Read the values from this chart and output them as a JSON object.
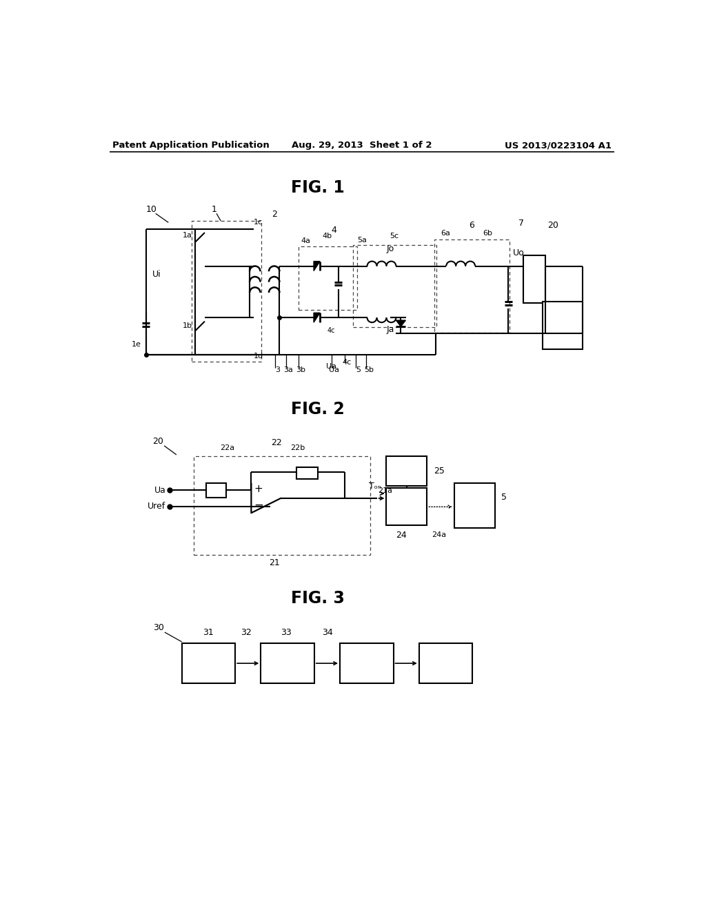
{
  "bg": "#ffffff",
  "header_left": "Patent Application Publication",
  "header_center": "Aug. 29, 2013  Sheet 1 of 2",
  "header_right": "US 2013/0223104 A1",
  "fig1_title": "FIG. 1",
  "fig2_title": "FIG. 2",
  "fig3_title": "FIG. 3"
}
